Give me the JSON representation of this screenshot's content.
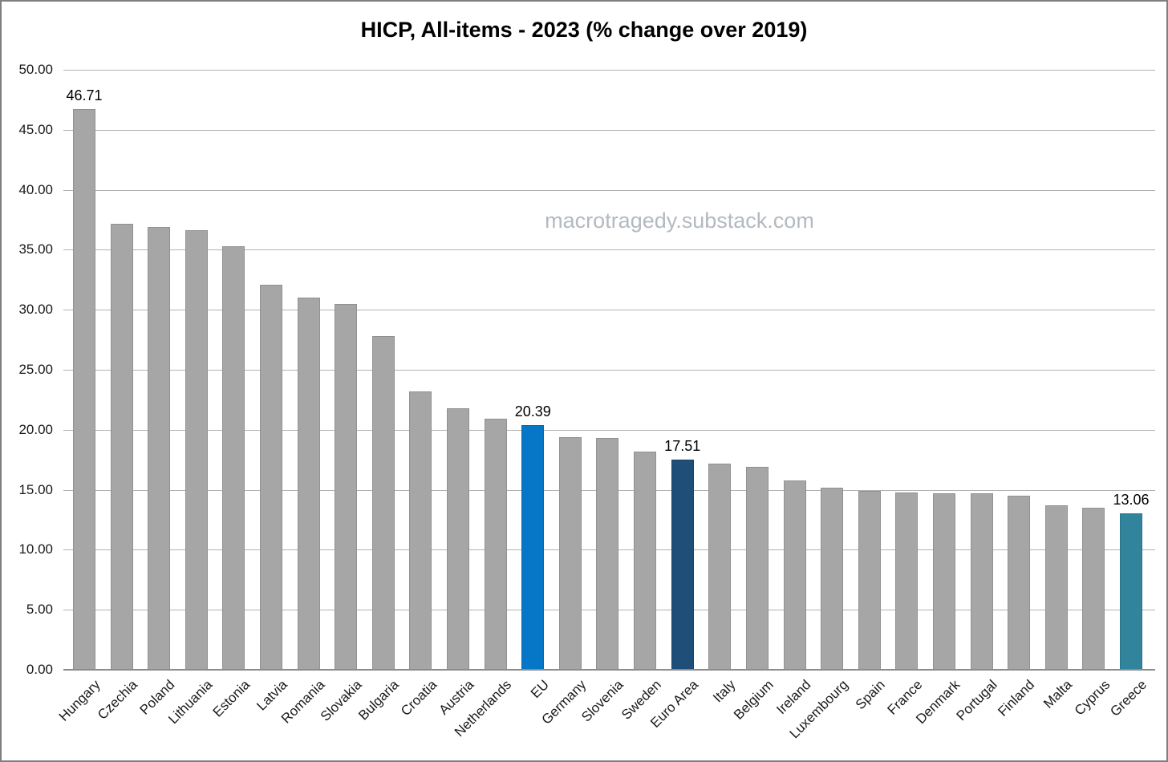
{
  "chart_data": {
    "type": "bar",
    "title": "HICP, All-items - 2023 (% change over 2019)",
    "watermark": "macrotragedy.substack.com",
    "xlabel": "",
    "ylabel": "",
    "ylim": [
      0,
      50
    ],
    "ytick_step": 5,
    "ytick_labels": [
      "50.00",
      "45.00",
      "40.00",
      "35.00",
      "30.00",
      "25.00",
      "20.00",
      "15.00",
      "10.00",
      "5.00",
      "0.00"
    ],
    "grid": true,
    "legend": "none",
    "categories": [
      "Hungary",
      "Czechia",
      "Poland",
      "Lithuania",
      "Estonia",
      "Latvia",
      "Romania",
      "Slovakia",
      "Bulgaria",
      "Croatia",
      "Austria",
      "Netherlands",
      "EU",
      "Germany",
      "Slovenia",
      "Sweden",
      "Euro Area",
      "Italy",
      "Belgium",
      "Ireland",
      "Luxembourg",
      "Spain",
      "France",
      "Denmark",
      "Portugal",
      "Finland",
      "Malta",
      "Cyprus",
      "Greece"
    ],
    "values": [
      46.71,
      37.2,
      36.9,
      36.6,
      35.3,
      32.1,
      31.0,
      30.5,
      27.8,
      23.2,
      21.8,
      20.9,
      20.39,
      19.4,
      19.3,
      18.2,
      17.51,
      17.2,
      16.9,
      15.8,
      15.2,
      14.9,
      14.8,
      14.7,
      14.7,
      14.5,
      13.7,
      13.5,
      13.06
    ],
    "data_labels": [
      {
        "category": "Hungary",
        "text": "46.71"
      },
      {
        "category": "EU",
        "text": "20.39"
      },
      {
        "category": "Euro Area",
        "text": "17.51"
      },
      {
        "category": "Greece",
        "text": "13.06"
      }
    ],
    "colors": {
      "default_bar": "#a6a6a6",
      "eu_bar": "#0676c6",
      "euro_area_bar": "#1f4e79",
      "greece_bar": "#31849b",
      "gridline": "#b2b2b2",
      "baseline": "#8c8c8c"
    },
    "highlighted_bars": {
      "EU": "eu_bar",
      "Euro Area": "euro_area_bar",
      "Greece": "greece_bar"
    }
  }
}
